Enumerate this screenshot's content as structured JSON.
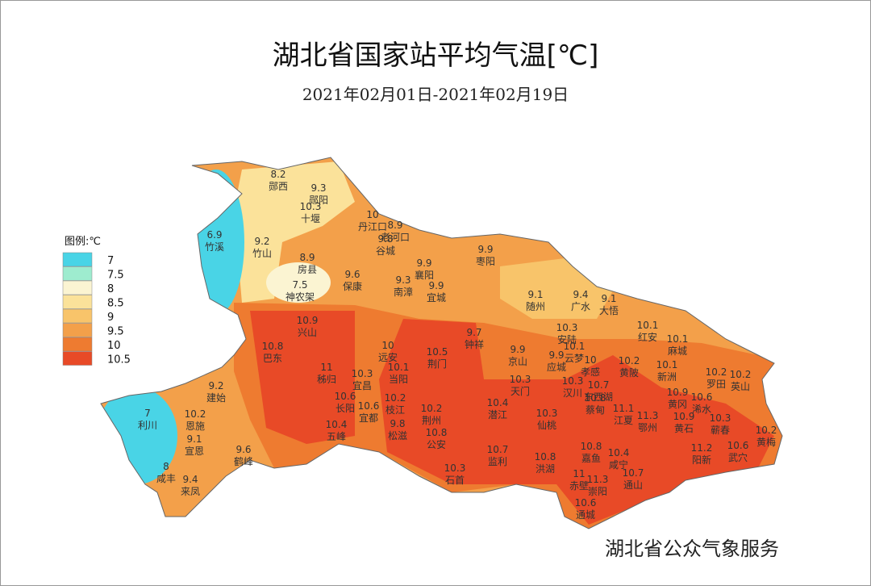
{
  "title": "湖北省国家站平均气温[℃]",
  "subtitle": "2021年02月01日-2021年02月19日",
  "legend": {
    "title": "图例:℃",
    "items": [
      {
        "value": 7,
        "color": "#49d4e6"
      },
      {
        "value": 7.5,
        "color": "#9eeccf"
      },
      {
        "value": 8,
        "color": "#fbf4d2"
      },
      {
        "value": 8.5,
        "color": "#fbe29a"
      },
      {
        "value": 9,
        "color": "#f8c46a"
      },
      {
        "value": 9.5,
        "color": "#f3a04a"
      },
      {
        "value": 10,
        "color": "#ee7b30"
      },
      {
        "value": 10.5,
        "color": "#e84a27"
      }
    ]
  },
  "stations": [
    {
      "name": "郧西",
      "value": 8.2
    },
    {
      "name": "郧阳",
      "value": 9.3
    },
    {
      "name": "十堰",
      "value": 10.3
    },
    {
      "name": "丹江口",
      "value": 10
    },
    {
      "name": "老河口",
      "value": 8.9
    },
    {
      "name": "谷城",
      "value": 9.8
    },
    {
      "name": "竹溪",
      "value": 6.9
    },
    {
      "name": "竹山",
      "value": 9.2
    },
    {
      "name": "房县",
      "value": 8.9
    },
    {
      "name": "保康",
      "value": 9.6
    },
    {
      "name": "襄阳",
      "value": 9.9
    },
    {
      "name": "枣阳",
      "value": 9.9
    },
    {
      "name": "南漳",
      "value": 9.3
    },
    {
      "name": "宜城",
      "value": 9.9
    },
    {
      "name": "神农架",
      "value": 7.5
    },
    {
      "name": "随州",
      "value": 9.1
    },
    {
      "name": "广水",
      "value": 9.4
    },
    {
      "name": "大悟",
      "value": 9.1
    },
    {
      "name": "兴山",
      "value": 10.9
    },
    {
      "name": "巴东",
      "value": 10.8
    },
    {
      "name": "秭归",
      "value": 11
    },
    {
      "name": "远安",
      "value": 10
    },
    {
      "name": "荆门",
      "value": 10.5
    },
    {
      "name": "钟祥",
      "value": 9.7
    },
    {
      "name": "京山",
      "value": 9.9
    },
    {
      "name": "安陆",
      "value": 10.3
    },
    {
      "name": "应城",
      "value": 9.9
    },
    {
      "name": "云梦",
      "value": 10.1
    },
    {
      "name": "孝感",
      "value": 10
    },
    {
      "name": "红安",
      "value": 10.1
    },
    {
      "name": "麻城",
      "value": 10.1
    },
    {
      "name": "黄陂",
      "value": 10.2
    },
    {
      "name": "新洲",
      "value": 10.1
    },
    {
      "name": "当阳",
      "value": 10.1
    },
    {
      "name": "宜昌",
      "value": 10.3
    },
    {
      "name": "天门",
      "value": 10.3
    },
    {
      "name": "汉川",
      "value": 10.3
    },
    {
      "name": "东西湖",
      "value": 10.7
    },
    {
      "name": "蔡甸",
      "value": 10.8
    },
    {
      "name": "长阳",
      "value": 10.6
    },
    {
      "name": "宜都",
      "value": 10.6
    },
    {
      "name": "枝江",
      "value": 10.2
    },
    {
      "name": "松滋",
      "value": 9.8
    },
    {
      "name": "荆州",
      "value": 10.2
    },
    {
      "name": "公安",
      "value": 10.8
    },
    {
      "name": "潜江",
      "value": 10.4
    },
    {
      "name": "仙桃",
      "value": 10.3
    },
    {
      "name": "江夏",
      "value": 11.1
    },
    {
      "name": "鄂州",
      "value": 11.3
    },
    {
      "name": "黄冈",
      "value": 10.9
    },
    {
      "name": "浠水",
      "value": 10.6
    },
    {
      "name": "黄石",
      "value": 10.9
    },
    {
      "name": "罗田",
      "value": 10.2
    },
    {
      "name": "英山",
      "value": 10.2
    },
    {
      "name": "蕲春",
      "value": 10.3
    },
    {
      "name": "黄梅",
      "value": 10.2
    },
    {
      "name": "武穴",
      "value": 10.6
    },
    {
      "name": "阳新",
      "value": 11.2
    },
    {
      "name": "五峰",
      "value": 10.4
    },
    {
      "name": "建始",
      "value": 9.2
    },
    {
      "name": "恩施",
      "value": 10.2
    },
    {
      "name": "宣恩",
      "value": 9.1
    },
    {
      "name": "利川",
      "value": 7
    },
    {
      "name": "鹤峰",
      "value": 9.6
    },
    {
      "name": "咸丰",
      "value": 8
    },
    {
      "name": "来凤",
      "value": 9.4
    },
    {
      "name": "石首",
      "value": 10.3
    },
    {
      "name": "监利",
      "value": 10.7
    },
    {
      "name": "洪湖",
      "value": 10.8
    },
    {
      "name": "嘉鱼",
      "value": 10.8
    },
    {
      "name": "咸宁",
      "value": 10.4
    },
    {
      "name": "赤壁",
      "value": 11
    },
    {
      "name": "崇阳",
      "value": 11.3
    },
    {
      "name": "通山",
      "value": 10.7
    },
    {
      "name": "通城",
      "value": 10.6
    }
  ],
  "watermark": "湖北省公众气象服务"
}
